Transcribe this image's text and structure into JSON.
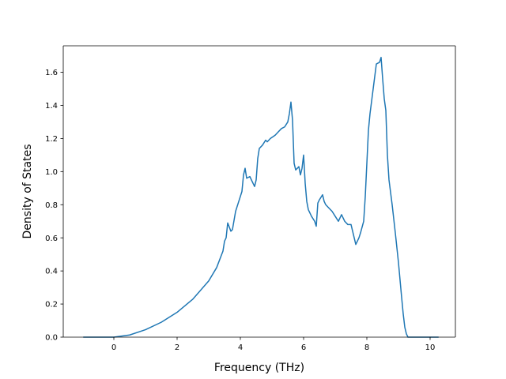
{
  "chart_data": {
    "type": "line",
    "title": "",
    "xlabel": "Frequency (THz)",
    "ylabel": "Density of States",
    "xlim": [
      -1.6,
      10.8
    ],
    "ylim": [
      0.0,
      1.76
    ],
    "grid": false,
    "legend": "none",
    "xticks": [
      0,
      2,
      4,
      6,
      8,
      10
    ],
    "xtick_labels": [
      "0",
      "2",
      "4",
      "6",
      "8",
      "10"
    ],
    "yticks": [
      0.0,
      0.2,
      0.4,
      0.6,
      0.8,
      1.0,
      1.2,
      1.4,
      1.6
    ],
    "ytick_labels": [
      "0.0",
      "0.2",
      "0.4",
      "0.6",
      "0.8",
      "1.0",
      "1.2",
      "1.4",
      "1.6"
    ],
    "series": [
      {
        "color": "#1f77b4",
        "x": [
          -0.95,
          0.0,
          0.5,
          1.0,
          1.5,
          2.0,
          2.5,
          3.0,
          3.25,
          3.45,
          3.5,
          3.55,
          3.6,
          3.7,
          3.75,
          3.85,
          3.95,
          4.05,
          4.1,
          4.15,
          4.2,
          4.3,
          4.4,
          4.45,
          4.5,
          4.55,
          4.6,
          4.7,
          4.8,
          4.85,
          4.95,
          5.1,
          5.2,
          5.3,
          5.4,
          5.5,
          5.55,
          5.6,
          5.65,
          5.7,
          5.75,
          5.85,
          5.9,
          5.95,
          6.0,
          6.05,
          6.1,
          6.15,
          6.25,
          6.35,
          6.4,
          6.45,
          6.5,
          6.6,
          6.65,
          6.7,
          6.8,
          6.9,
          7.0,
          7.1,
          7.2,
          7.25,
          7.3,
          7.4,
          7.5,
          7.6,
          7.65,
          7.7,
          7.75,
          7.8,
          7.9,
          7.95,
          8.0,
          8.05,
          8.1,
          8.2,
          8.3,
          8.4,
          8.45,
          8.5,
          8.55,
          8.6,
          8.65,
          8.7,
          8.8,
          8.9,
          9.0,
          9.1,
          9.15,
          9.2,
          9.25,
          9.3,
          9.4,
          10.25
        ],
        "y": [
          0.0,
          0.0,
          0.013,
          0.045,
          0.09,
          0.15,
          0.23,
          0.34,
          0.42,
          0.52,
          0.58,
          0.6,
          0.69,
          0.64,
          0.65,
          0.76,
          0.82,
          0.88,
          0.98,
          1.02,
          0.96,
          0.97,
          0.93,
          0.91,
          0.95,
          1.08,
          1.14,
          1.16,
          1.19,
          1.18,
          1.2,
          1.22,
          1.24,
          1.26,
          1.27,
          1.3,
          1.35,
          1.42,
          1.31,
          1.05,
          1.01,
          1.03,
          0.98,
          1.02,
          1.1,
          0.93,
          0.82,
          0.77,
          0.73,
          0.7,
          0.67,
          0.81,
          0.83,
          0.86,
          0.82,
          0.8,
          0.78,
          0.76,
          0.73,
          0.7,
          0.74,
          0.72,
          0.7,
          0.68,
          0.68,
          0.6,
          0.56,
          0.58,
          0.6,
          0.63,
          0.7,
          0.85,
          1.05,
          1.25,
          1.35,
          1.5,
          1.65,
          1.66,
          1.69,
          1.56,
          1.44,
          1.37,
          1.1,
          0.95,
          0.8,
          0.63,
          0.45,
          0.24,
          0.14,
          0.06,
          0.02,
          0.0,
          0.0,
          0.0
        ]
      }
    ]
  }
}
